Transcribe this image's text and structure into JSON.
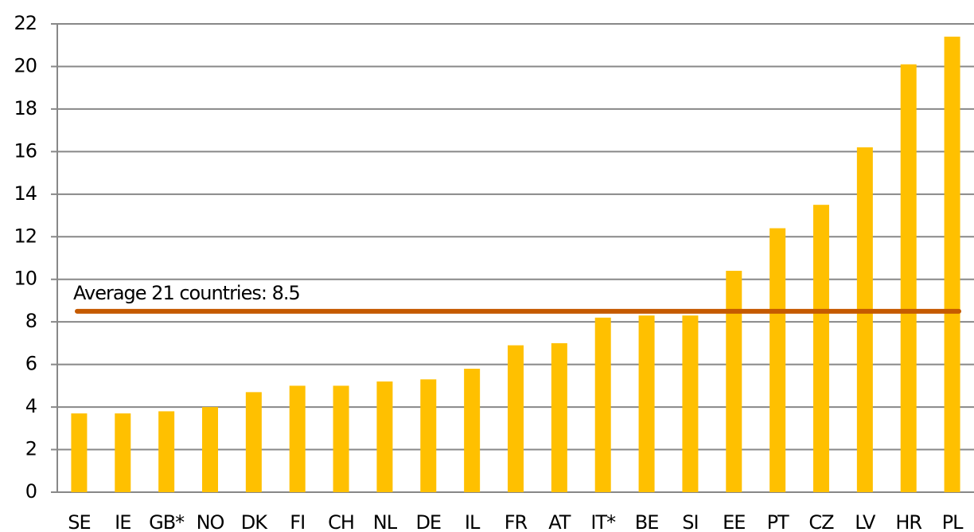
{
  "chart_data": {
    "type": "bar",
    "categories": [
      "SE",
      "IE",
      "GB*",
      "NO",
      "DK",
      "FI",
      "CH",
      "NL",
      "DE",
      "IL",
      "FR",
      "AT",
      "IT*",
      "BE",
      "SI",
      "EE",
      "PT",
      "CZ",
      "LV",
      "HR",
      "PL"
    ],
    "values": [
      3.7,
      3.7,
      3.8,
      4.0,
      4.7,
      5.0,
      5.0,
      5.2,
      5.3,
      5.8,
      6.9,
      7.0,
      8.2,
      8.3,
      8.3,
      10.4,
      12.4,
      13.5,
      16.2,
      20.1,
      21.4
    ],
    "color": "#ffc000",
    "average": 8.5,
    "average_color": "#c55a00",
    "annotation": "Average 21 countries: 8.5",
    "ylim": [
      0,
      22
    ],
    "yticks": [
      0,
      2,
      4,
      6,
      8,
      10,
      12,
      14,
      16,
      18,
      20,
      22
    ],
    "grid": true
  }
}
